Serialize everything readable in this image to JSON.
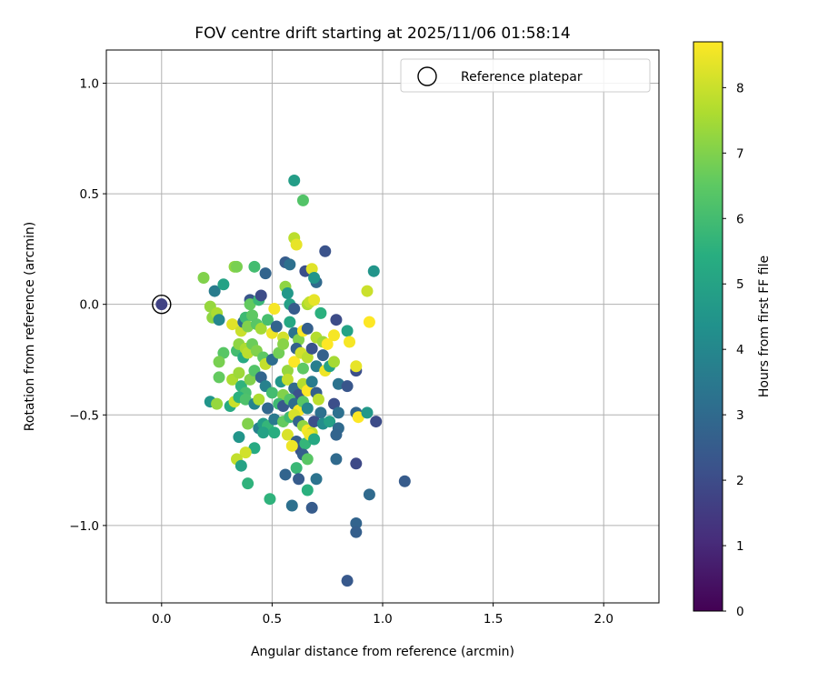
{
  "chart_data": {
    "type": "scatter",
    "title": "FOV centre drift starting at 2025/11/06 01:58:14",
    "xlabel": "Angular distance from reference (arcmin)",
    "ylabel": "Rotation from reference (arcmin)",
    "xlim": [
      -0.25,
      2.25
    ],
    "ylim": [
      -1.35,
      1.15
    ],
    "xticks": [
      0.0,
      0.5,
      1.0,
      1.5,
      2.0
    ],
    "xtick_labels": [
      "0.0",
      "0.5",
      "1.0",
      "1.5",
      "2.0"
    ],
    "yticks": [
      1.0,
      0.5,
      0.0,
      -0.5,
      -1.0
    ],
    "ytick_labels": [
      "1.0",
      "0.5",
      "0.0",
      "−0.5",
      "−1.0"
    ],
    "grid": true,
    "legend": {
      "label": "Reference platepar",
      "location": "top-right"
    },
    "reference_point": {
      "x": 0.0,
      "y": 0.0
    },
    "colorbar": {
      "label": "Hours from first FF file",
      "range": [
        0,
        8.7
      ],
      "ticks": [
        0,
        1,
        2,
        3,
        4,
        5,
        6,
        7,
        8
      ],
      "tick_labels": [
        "0",
        "1",
        "2",
        "3",
        "4",
        "5",
        "6",
        "7",
        "8"
      ],
      "colormap": "viridis"
    },
    "points": [
      {
        "x": 0.0,
        "y": 0.0,
        "h": 1.7
      },
      {
        "x": 0.6,
        "y": 0.56,
        "h": 4.8
      },
      {
        "x": 0.64,
        "y": 0.47,
        "h": 6.3
      },
      {
        "x": 0.6,
        "y": 0.3,
        "h": 7.8
      },
      {
        "x": 0.61,
        "y": 0.27,
        "h": 8.4
      },
      {
        "x": 0.74,
        "y": 0.24,
        "h": 2.2
      },
      {
        "x": 0.19,
        "y": 0.12,
        "h": 7.0
      },
      {
        "x": 0.33,
        "y": 0.17,
        "h": 7.2
      },
      {
        "x": 0.34,
        "y": 0.17,
        "h": 6.9
      },
      {
        "x": 0.42,
        "y": 0.17,
        "h": 6.0
      },
      {
        "x": 0.47,
        "y": 0.14,
        "h": 2.8
      },
      {
        "x": 0.56,
        "y": 0.19,
        "h": 2.5
      },
      {
        "x": 0.58,
        "y": 0.18,
        "h": 3.2
      },
      {
        "x": 0.65,
        "y": 0.15,
        "h": 2.1
      },
      {
        "x": 0.68,
        "y": 0.16,
        "h": 8.3
      },
      {
        "x": 0.96,
        "y": 0.15,
        "h": 4.5
      },
      {
        "x": 0.24,
        "y": 0.06,
        "h": 3.6
      },
      {
        "x": 0.28,
        "y": 0.09,
        "h": 5.0
      },
      {
        "x": 0.56,
        "y": 0.08,
        "h": 7.2
      },
      {
        "x": 0.57,
        "y": 0.05,
        "h": 4.6
      },
      {
        "x": 0.7,
        "y": 0.1,
        "h": 3.0
      },
      {
        "x": 0.69,
        "y": 0.12,
        "h": 4.5
      },
      {
        "x": 0.93,
        "y": 0.06,
        "h": 8.0
      },
      {
        "x": 0.22,
        "y": -0.01,
        "h": 7.3
      },
      {
        "x": 0.4,
        "y": 0.02,
        "h": 2.3
      },
      {
        "x": 0.4,
        "y": 0.0,
        "h": 6.6
      },
      {
        "x": 0.44,
        "y": 0.02,
        "h": 5.8
      },
      {
        "x": 0.45,
        "y": 0.04,
        "h": 2.0
      },
      {
        "x": 0.51,
        "y": -0.02,
        "h": 8.6
      },
      {
        "x": 0.58,
        "y": 0.0,
        "h": 4.9
      },
      {
        "x": 0.6,
        "y": -0.02,
        "h": 2.5
      },
      {
        "x": 0.66,
        "y": 0.0,
        "h": 7.6
      },
      {
        "x": 0.67,
        "y": 0.01,
        "h": 7.9
      },
      {
        "x": 0.69,
        "y": 0.02,
        "h": 8.4
      },
      {
        "x": 0.23,
        "y": -0.06,
        "h": 7.2
      },
      {
        "x": 0.25,
        "y": -0.04,
        "h": 7.6
      },
      {
        "x": 0.26,
        "y": -0.07,
        "h": 4.0
      },
      {
        "x": 0.32,
        "y": -0.09,
        "h": 8.3
      },
      {
        "x": 0.36,
        "y": -0.12,
        "h": 8.0
      },
      {
        "x": 0.37,
        "y": -0.08,
        "h": 3.0
      },
      {
        "x": 0.38,
        "y": -0.06,
        "h": 5.9
      },
      {
        "x": 0.39,
        "y": -0.1,
        "h": 7.0
      },
      {
        "x": 0.41,
        "y": -0.05,
        "h": 6.5
      },
      {
        "x": 0.43,
        "y": -0.09,
        "h": 6.4
      },
      {
        "x": 0.45,
        "y": -0.11,
        "h": 7.5
      },
      {
        "x": 0.48,
        "y": -0.07,
        "h": 6.1
      },
      {
        "x": 0.5,
        "y": -0.13,
        "h": 8.5
      },
      {
        "x": 0.52,
        "y": -0.1,
        "h": 2.8
      },
      {
        "x": 0.55,
        "y": -0.15,
        "h": 8.1
      },
      {
        "x": 0.58,
        "y": -0.08,
        "h": 5.2
      },
      {
        "x": 0.6,
        "y": -0.13,
        "h": 3.3
      },
      {
        "x": 0.62,
        "y": -0.16,
        "h": 7.0
      },
      {
        "x": 0.64,
        "y": -0.12,
        "h": 8.7
      },
      {
        "x": 0.66,
        "y": -0.11,
        "h": 2.6
      },
      {
        "x": 0.7,
        "y": -0.15,
        "h": 7.7
      },
      {
        "x": 0.72,
        "y": -0.04,
        "h": 5.5
      },
      {
        "x": 0.73,
        "y": -0.17,
        "h": 7.4
      },
      {
        "x": 0.75,
        "y": -0.18,
        "h": 8.8
      },
      {
        "x": 0.78,
        "y": -0.14,
        "h": 8.6
      },
      {
        "x": 0.79,
        "y": -0.07,
        "h": 2.0
      },
      {
        "x": 0.84,
        "y": -0.12,
        "h": 5.0
      },
      {
        "x": 0.85,
        "y": -0.17,
        "h": 8.6
      },
      {
        "x": 0.94,
        "y": -0.08,
        "h": 8.7
      },
      {
        "x": 0.28,
        "y": -0.22,
        "h": 6.4
      },
      {
        "x": 0.26,
        "y": -0.26,
        "h": 6.9
      },
      {
        "x": 0.26,
        "y": -0.33,
        "h": 6.6
      },
      {
        "x": 0.34,
        "y": -0.21,
        "h": 6.0
      },
      {
        "x": 0.35,
        "y": -0.18,
        "h": 7.2
      },
      {
        "x": 0.37,
        "y": -0.24,
        "h": 5.3
      },
      {
        "x": 0.38,
        "y": -0.2,
        "h": 7.6
      },
      {
        "x": 0.39,
        "y": -0.22,
        "h": 7.8
      },
      {
        "x": 0.41,
        "y": -0.18,
        "h": 6.7
      },
      {
        "x": 0.43,
        "y": -0.21,
        "h": 7.0
      },
      {
        "x": 0.46,
        "y": -0.24,
        "h": 6.5
      },
      {
        "x": 0.47,
        "y": -0.27,
        "h": 7.9
      },
      {
        "x": 0.5,
        "y": -0.25,
        "h": 3.1
      },
      {
        "x": 0.53,
        "y": -0.22,
        "h": 6.8
      },
      {
        "x": 0.55,
        "y": -0.18,
        "h": 7.1
      },
      {
        "x": 0.57,
        "y": -0.3,
        "h": 7.3
      },
      {
        "x": 0.6,
        "y": -0.26,
        "h": 8.7
      },
      {
        "x": 0.61,
        "y": -0.2,
        "h": 2.7
      },
      {
        "x": 0.63,
        "y": -0.22,
        "h": 8.1
      },
      {
        "x": 0.64,
        "y": -0.29,
        "h": 6.5
      },
      {
        "x": 0.66,
        "y": -0.24,
        "h": 7.8
      },
      {
        "x": 0.68,
        "y": -0.2,
        "h": 2.2
      },
      {
        "x": 0.7,
        "y": -0.28,
        "h": 3.7
      },
      {
        "x": 0.73,
        "y": -0.23,
        "h": 2.7
      },
      {
        "x": 0.74,
        "y": -0.3,
        "h": 8.5
      },
      {
        "x": 0.76,
        "y": -0.28,
        "h": 5.0
      },
      {
        "x": 0.78,
        "y": -0.26,
        "h": 7.5
      },
      {
        "x": 0.8,
        "y": -0.36,
        "h": 3.3
      },
      {
        "x": 0.84,
        "y": -0.37,
        "h": 2.3
      },
      {
        "x": 0.88,
        "y": -0.3,
        "h": 2.1
      },
      {
        "x": 0.88,
        "y": -0.28,
        "h": 8.4
      },
      {
        "x": 0.32,
        "y": -0.34,
        "h": 7.6
      },
      {
        "x": 0.35,
        "y": -0.31,
        "h": 7.4
      },
      {
        "x": 0.36,
        "y": -0.37,
        "h": 5.6
      },
      {
        "x": 0.38,
        "y": -0.4,
        "h": 6.1
      },
      {
        "x": 0.4,
        "y": -0.34,
        "h": 7.0
      },
      {
        "x": 0.42,
        "y": -0.3,
        "h": 6.3
      },
      {
        "x": 0.45,
        "y": -0.33,
        "h": 2.8
      },
      {
        "x": 0.47,
        "y": -0.37,
        "h": 3.8
      },
      {
        "x": 0.5,
        "y": -0.4,
        "h": 6.0
      },
      {
        "x": 0.54,
        "y": -0.35,
        "h": 4.5
      },
      {
        "x": 0.55,
        "y": -0.41,
        "h": 7.0
      },
      {
        "x": 0.57,
        "y": -0.34,
        "h": 7.9
      },
      {
        "x": 0.6,
        "y": -0.38,
        "h": 3.0
      },
      {
        "x": 0.62,
        "y": -0.41,
        "h": 2.2
      },
      {
        "x": 0.64,
        "y": -0.36,
        "h": 7.7
      },
      {
        "x": 0.66,
        "y": -0.39,
        "h": 8.7
      },
      {
        "x": 0.68,
        "y": -0.35,
        "h": 3.6
      },
      {
        "x": 0.7,
        "y": -0.4,
        "h": 2.6
      },
      {
        "x": 0.22,
        "y": -0.44,
        "h": 4.5
      },
      {
        "x": 0.25,
        "y": -0.45,
        "h": 7.3
      },
      {
        "x": 0.31,
        "y": -0.46,
        "h": 5.3
      },
      {
        "x": 0.33,
        "y": -0.44,
        "h": 8.0
      },
      {
        "x": 0.35,
        "y": -0.42,
        "h": 5.5
      },
      {
        "x": 0.38,
        "y": -0.43,
        "h": 6.2
      },
      {
        "x": 0.42,
        "y": -0.45,
        "h": 3.9
      },
      {
        "x": 0.44,
        "y": -0.43,
        "h": 7.6
      },
      {
        "x": 0.48,
        "y": -0.47,
        "h": 2.9
      },
      {
        "x": 0.53,
        "y": -0.45,
        "h": 5.9
      },
      {
        "x": 0.55,
        "y": -0.46,
        "h": 2.4
      },
      {
        "x": 0.58,
        "y": -0.43,
        "h": 6.3
      },
      {
        "x": 0.6,
        "y": -0.45,
        "h": 3.1
      },
      {
        "x": 0.62,
        "y": -0.48,
        "h": 8.6
      },
      {
        "x": 0.64,
        "y": -0.44,
        "h": 6.4
      },
      {
        "x": 0.66,
        "y": -0.47,
        "h": 4.0
      },
      {
        "x": 0.71,
        "y": -0.43,
        "h": 7.8
      },
      {
        "x": 0.72,
        "y": -0.49,
        "h": 3.2
      },
      {
        "x": 0.78,
        "y": -0.45,
        "h": 2.1
      },
      {
        "x": 0.8,
        "y": -0.49,
        "h": 3.2
      },
      {
        "x": 0.88,
        "y": -0.49,
        "h": 2.8
      },
      {
        "x": 0.89,
        "y": -0.51,
        "h": 8.7
      },
      {
        "x": 0.93,
        "y": -0.49,
        "h": 4.6
      },
      {
        "x": 0.97,
        "y": -0.53,
        "h": 2.0
      },
      {
        "x": 0.35,
        "y": -0.6,
        "h": 4.5
      },
      {
        "x": 0.39,
        "y": -0.54,
        "h": 7.0
      },
      {
        "x": 0.44,
        "y": -0.56,
        "h": 3.8
      },
      {
        "x": 0.46,
        "y": -0.54,
        "h": 4.8
      },
      {
        "x": 0.48,
        "y": -0.55,
        "h": 5.7
      },
      {
        "x": 0.51,
        "y": -0.52,
        "h": 3.5
      },
      {
        "x": 0.55,
        "y": -0.53,
        "h": 6.6
      },
      {
        "x": 0.58,
        "y": -0.51,
        "h": 5.9
      },
      {
        "x": 0.6,
        "y": -0.5,
        "h": 8.2
      },
      {
        "x": 0.62,
        "y": -0.53,
        "h": 2.8
      },
      {
        "x": 0.64,
        "y": -0.55,
        "h": 7.2
      },
      {
        "x": 0.66,
        "y": -0.57,
        "h": 8.6
      },
      {
        "x": 0.68,
        "y": -0.58,
        "h": 7.9
      },
      {
        "x": 0.69,
        "y": -0.53,
        "h": 2.1
      },
      {
        "x": 0.73,
        "y": -0.54,
        "h": 4.2
      },
      {
        "x": 0.76,
        "y": -0.53,
        "h": 4.9
      },
      {
        "x": 0.8,
        "y": -0.56,
        "h": 3.0
      },
      {
        "x": 0.46,
        "y": -0.58,
        "h": 5.0
      },
      {
        "x": 0.51,
        "y": -0.58,
        "h": 5.4
      },
      {
        "x": 0.57,
        "y": -0.59,
        "h": 8.2
      },
      {
        "x": 0.61,
        "y": -0.62,
        "h": 2.6
      },
      {
        "x": 0.63,
        "y": -0.66,
        "h": 2.2
      },
      {
        "x": 0.65,
        "y": -0.63,
        "h": 5.7
      },
      {
        "x": 0.67,
        "y": -0.59,
        "h": 8.5
      },
      {
        "x": 0.69,
        "y": -0.61,
        "h": 5.2
      },
      {
        "x": 0.79,
        "y": -0.59,
        "h": 2.8
      },
      {
        "x": 0.42,
        "y": -0.65,
        "h": 5.3
      },
      {
        "x": 0.38,
        "y": -0.67,
        "h": 8.1
      },
      {
        "x": 0.34,
        "y": -0.7,
        "h": 7.9
      },
      {
        "x": 0.36,
        "y": -0.73,
        "h": 5.0
      },
      {
        "x": 0.59,
        "y": -0.64,
        "h": 8.5
      },
      {
        "x": 0.64,
        "y": -0.68,
        "h": 2.6
      },
      {
        "x": 0.66,
        "y": -0.7,
        "h": 6.4
      },
      {
        "x": 0.79,
        "y": -0.7,
        "h": 3.0
      },
      {
        "x": 0.88,
        "y": -0.72,
        "h": 1.9
      },
      {
        "x": 0.39,
        "y": -0.81,
        "h": 5.6
      },
      {
        "x": 0.56,
        "y": -0.77,
        "h": 2.8
      },
      {
        "x": 0.61,
        "y": -0.74,
        "h": 5.8
      },
      {
        "x": 0.62,
        "y": -0.79,
        "h": 2.5
      },
      {
        "x": 0.7,
        "y": -0.79,
        "h": 3.3
      },
      {
        "x": 1.1,
        "y": -0.8,
        "h": 2.5
      },
      {
        "x": 0.66,
        "y": -0.84,
        "h": 5.5
      },
      {
        "x": 0.94,
        "y": -0.86,
        "h": 3.0
      },
      {
        "x": 0.49,
        "y": -0.88,
        "h": 5.6
      },
      {
        "x": 0.59,
        "y": -0.91,
        "h": 3.2
      },
      {
        "x": 0.68,
        "y": -0.92,
        "h": 2.5
      },
      {
        "x": 0.88,
        "y": -0.99,
        "h": 2.8
      },
      {
        "x": 0.88,
        "y": -1.03,
        "h": 2.6
      },
      {
        "x": 0.84,
        "y": -1.25,
        "h": 2.4
      }
    ]
  }
}
